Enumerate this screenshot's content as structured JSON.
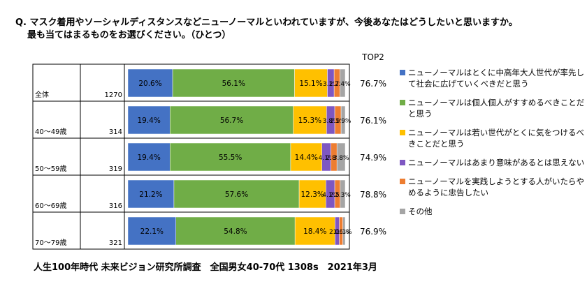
{
  "question": {
    "line1": "Q. マスク着用やソーシャルディスタンスなどニューノーマルといわれていますが、今後あなたはどうしたいと思いますか。",
    "line2": "最も当てはまるものをお選びください。（ひとつ）"
  },
  "source": "人生100年時代 未来ビジョン研究所調査　全国男女40-70代 1308s　2021年3月",
  "chart_data": {
    "type": "bar",
    "stacked": true,
    "orientation": "horizontal",
    "top2_header": "TOP2",
    "categories": [
      "全体",
      "40～49歳",
      "50～59歳",
      "60～69歳",
      "70～79歳"
    ],
    "sample_sizes": [
      "1270",
      "314",
      "319",
      "316",
      "321"
    ],
    "series": [
      {
        "name": "ニューノーマルはとくに中高年大人世代が率先して社会に広げていくべきだと思う",
        "color": "#4472c4",
        "values": [
          20.6,
          19.4,
          19.4,
          21.2,
          22.1
        ],
        "labels": [
          "20.6%",
          "19.4%",
          "19.4%",
          "21.2%",
          "22.1%"
        ]
      },
      {
        "name": "ニューノーマルは個人個人がすすめるべきことだと思う",
        "color": "#70ad47",
        "values": [
          56.1,
          56.7,
          55.5,
          57.6,
          54.8
        ],
        "labels": [
          "56.1%",
          "56.7%",
          "55.5%",
          "57.6%",
          "54.8%"
        ]
      },
      {
        "name": "ニューノーマルは若い世代がとくに気をつけるべきことだと思う",
        "color": "#ffc000",
        "values": [
          15.1,
          15.3,
          14.4,
          12.3,
          18.4
        ],
        "labels": [
          "15.1%",
          "15.3%",
          "14.4%",
          "12.3%",
          "18.4%"
        ]
      },
      {
        "name": "ニューノーマルはあまり意味があるとは思えない",
        "color": "#7e57c2",
        "values": [
          3.1,
          3.8,
          4.1,
          4.1,
          2.0
        ],
        "labels": [
          "3.1%",
          "3.8%",
          "4.1%",
          "4.1%",
          "2.0%"
        ]
      },
      {
        "name": "ニューノーマルを実践しようとする人がいたらやめるように忠告したい",
        "color": "#ed7d31",
        "values": [
          2.7,
          2.9,
          2.8,
          2.5,
          1.6
        ],
        "labels": [
          "2.7%",
          "2.9%",
          "2.8%",
          "2.5%",
          "1.6%"
        ]
      },
      {
        "name": "その他",
        "color": "#a5a5a5",
        "values": [
          2.4,
          1.9,
          3.8,
          2.3,
          1.1
        ],
        "labels": [
          "2.4%",
          "1.9%",
          "3.8%",
          "2.3%",
          "1.1%"
        ]
      }
    ],
    "top2": [
      "76.7%",
      "76.1%",
      "74.9%",
      "78.8%",
      "76.9%"
    ],
    "xlim": [
      0,
      100
    ]
  }
}
